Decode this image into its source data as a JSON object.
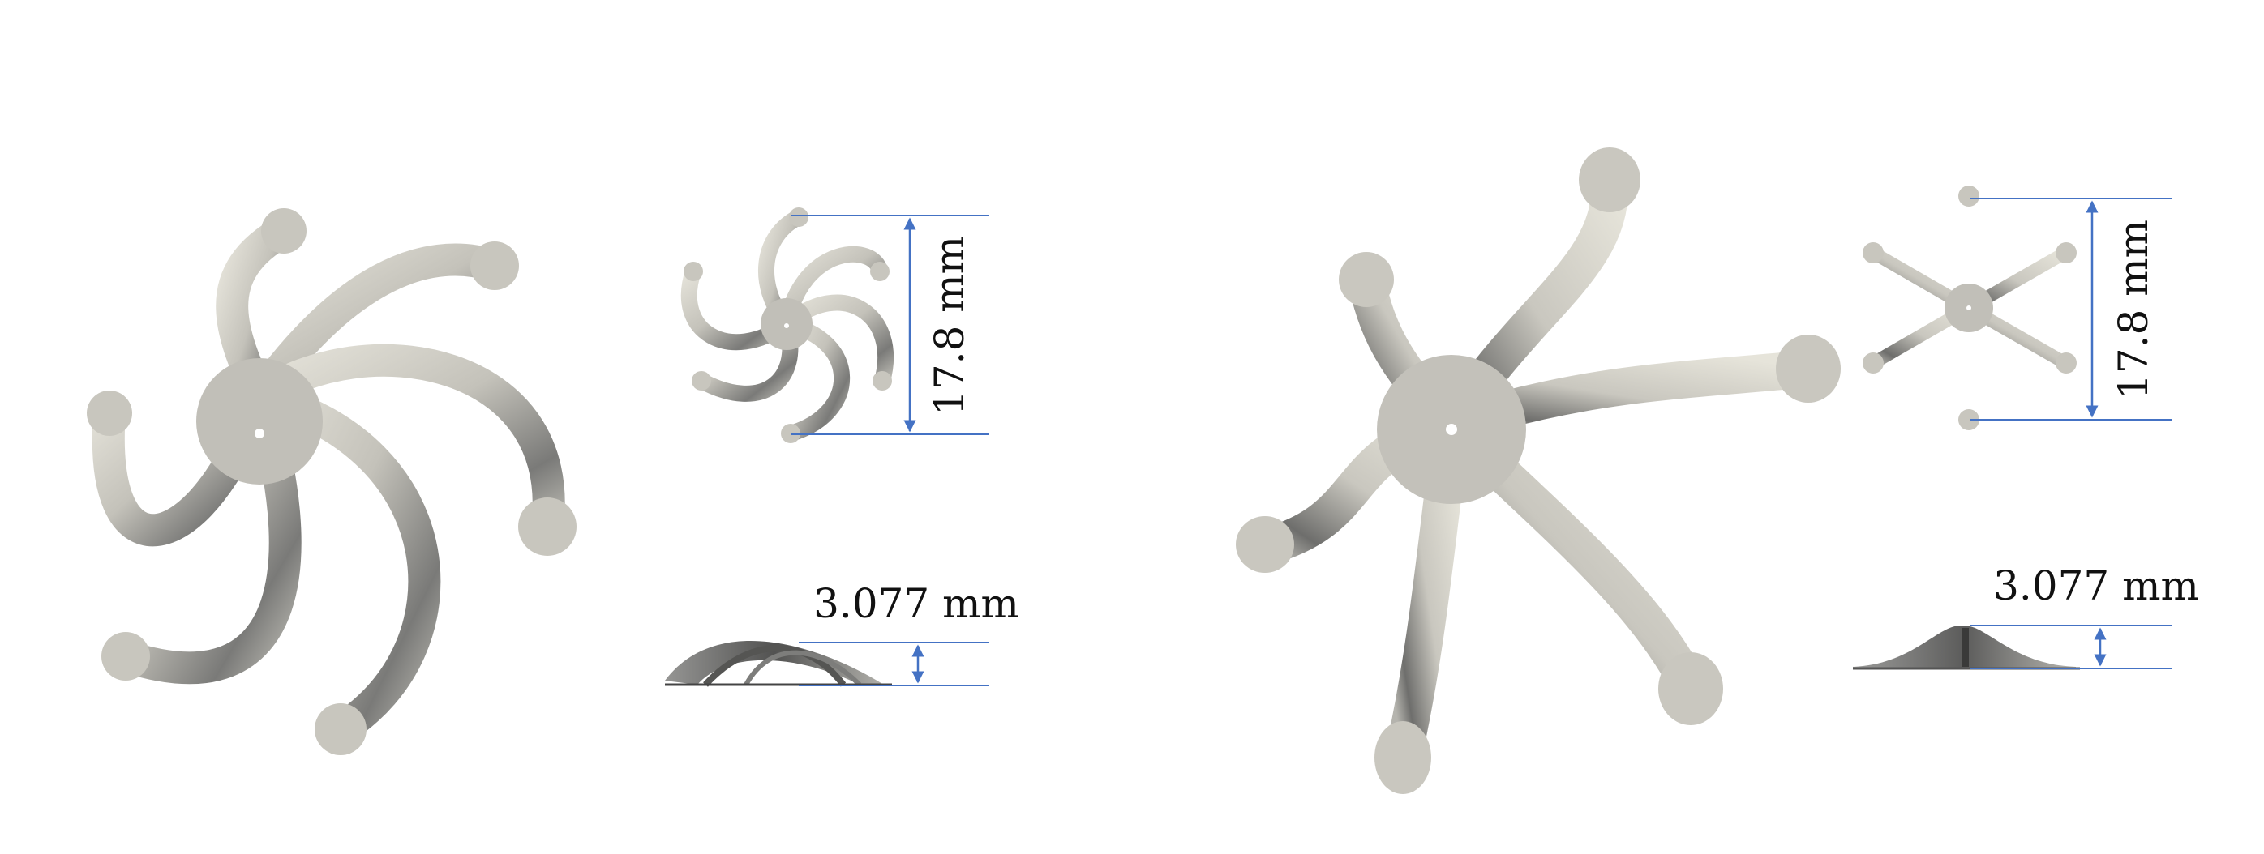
{
  "figure": {
    "left": {
      "diameter_label": "17.8 mm",
      "height_label": "3.077 mm",
      "arm_count": 6,
      "arm_shape": "spiral"
    },
    "right": {
      "diameter_label": "17.8 mm",
      "height_label": "3.077 mm",
      "arm_count": 6,
      "arm_shape": "radial"
    }
  },
  "colors": {
    "dimension_line": "#4472c4",
    "metal_light": "#e2e0d6",
    "metal_mid": "#bdbbb3",
    "metal_dark": "#6a6a68",
    "label_text": "#111111"
  }
}
